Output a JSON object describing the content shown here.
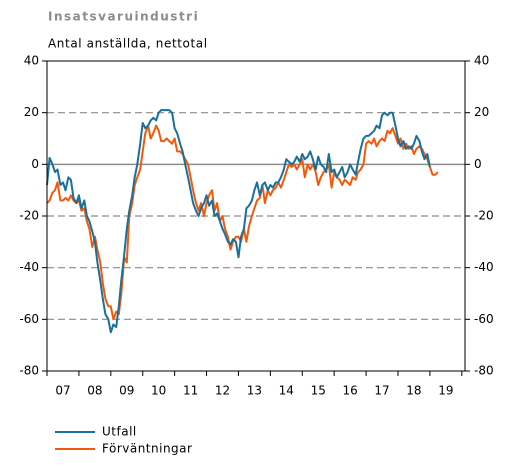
{
  "chart_data": {
    "type": "line",
    "title": "Insatsvaruindustri",
    "subtitle": "Antal anställda, nettotal",
    "x": [
      7,
      7.08,
      7.17,
      7.25,
      7.33,
      7.42,
      7.5,
      7.58,
      7.67,
      7.75,
      7.83,
      7.92,
      8,
      8.08,
      8.17,
      8.25,
      8.33,
      8.42,
      8.5,
      8.58,
      8.67,
      8.75,
      8.83,
      8.92,
      9,
      9.08,
      9.17,
      9.25,
      9.33,
      9.42,
      9.5,
      9.58,
      9.67,
      9.75,
      9.83,
      9.92,
      10,
      10.08,
      10.17,
      10.25,
      10.33,
      10.42,
      10.5,
      10.58,
      10.67,
      10.75,
      10.83,
      10.92,
      11,
      11.08,
      11.17,
      11.25,
      11.33,
      11.42,
      11.5,
      11.58,
      11.67,
      11.75,
      11.83,
      11.92,
      12,
      12.08,
      12.17,
      12.25,
      12.33,
      12.42,
      12.5,
      12.58,
      12.67,
      12.75,
      12.83,
      12.92,
      13,
      13.08,
      13.17,
      13.25,
      13.33,
      13.42,
      13.5,
      13.58,
      13.67,
      13.75,
      13.83,
      13.92,
      14,
      14.08,
      14.17,
      14.25,
      14.33,
      14.42,
      14.5,
      14.58,
      14.67,
      14.75,
      14.83,
      14.92,
      15,
      15.08,
      15.17,
      15.25,
      15.33,
      15.42,
      15.5,
      15.58,
      15.67,
      15.75,
      15.83,
      15.92,
      16,
      16.08,
      16.17,
      16.25,
      16.33,
      16.42,
      16.5,
      16.58,
      16.67,
      16.75,
      16.83,
      16.92,
      17,
      17.08,
      17.17,
      17.25,
      17.33,
      17.42,
      17.5,
      17.58,
      17.67,
      17.75,
      17.83,
      17.92,
      18,
      18.08,
      18.17,
      18.25,
      18.33,
      18.42,
      18.5,
      18.58,
      18.67,
      18.75,
      18.83,
      18.92,
      19,
      19.08,
      19.17,
      19.25
    ],
    "series": [
      {
        "name": "Utfall",
        "color": "#19709c",
        "values": [
          -8,
          2.5,
          0,
          -3,
          -2,
          -8,
          -7,
          -10,
          -5,
          -6,
          -13,
          -15,
          -12,
          -17,
          -14,
          -20,
          -22,
          -26,
          -30,
          -38,
          -45,
          -52,
          -58,
          -60,
          -65,
          -62,
          -63,
          -55,
          -45,
          -35,
          -25,
          -18,
          -12,
          -5,
          0,
          8,
          16,
          14,
          15,
          17,
          18,
          17,
          20,
          21,
          21,
          21,
          21,
          20,
          14,
          12,
          8,
          5,
          0,
          -5,
          -10,
          -15,
          -18,
          -20,
          -17,
          -15,
          -12,
          -16,
          -14,
          -20,
          -19,
          -22,
          -25,
          -27,
          -30,
          -31,
          -29,
          -30,
          -36,
          -28,
          -25,
          -17,
          -16,
          -14,
          -10,
          -7,
          -12,
          -8,
          -7,
          -10,
          -8,
          -9,
          -7,
          -7,
          -5,
          -2,
          2,
          1,
          0,
          1,
          3,
          1,
          4,
          2,
          3,
          5,
          2,
          -2,
          3,
          0,
          -1,
          -3,
          4,
          -3,
          -2,
          -5,
          -3,
          -1,
          -5,
          -3,
          0,
          -2,
          -4,
          1,
          6,
          10,
          11,
          11,
          12,
          13,
          15,
          14,
          19,
          20,
          19,
          20,
          20,
          15,
          10,
          7,
          9,
          6,
          7,
          6,
          8,
          11,
          9,
          5,
          2,
          4,
          -1,
          null,
          null,
          null
        ]
      },
      {
        "name": "Förväntningar",
        "color": "#f25a0a",
        "values": [
          -15,
          -14,
          -11,
          -10,
          -7,
          -14,
          -14,
          -13,
          -14,
          -12,
          -14,
          -15,
          -14,
          -18,
          -17,
          -22,
          -25,
          -32,
          -28,
          -33,
          -38,
          -46,
          -52,
          -55,
          -55,
          -60,
          -57,
          -58,
          -50,
          -36,
          -38,
          -20,
          -15,
          -8,
          -5,
          -2,
          5,
          12,
          15,
          10,
          12,
          15,
          13,
          9,
          9,
          10,
          9,
          8,
          10,
          5,
          5,
          4,
          2,
          0,
          -5,
          -10,
          -15,
          -18,
          -15,
          -20,
          -15,
          -12,
          -10,
          -18,
          -15,
          -22,
          -20,
          -25,
          -28,
          -33,
          -30,
          -28,
          -28,
          -30,
          -25,
          -30,
          -24,
          -20,
          -17,
          -14,
          -13,
          -8,
          -15,
          -10,
          -12,
          -10,
          -9,
          -7,
          -9,
          -6,
          -3,
          0,
          -1,
          0,
          -2,
          0,
          2,
          -5,
          0,
          -2,
          0,
          -3,
          -8,
          -5,
          -3,
          -2,
          0,
          -9,
          -3,
          -5,
          -6,
          -8,
          -6,
          -7,
          -8,
          -5,
          -6,
          -3,
          -2,
          0,
          8,
          9,
          8,
          10,
          7,
          9,
          10,
          9,
          13,
          12,
          14,
          11,
          8,
          10,
          6,
          8,
          6,
          7,
          4,
          6,
          7,
          6,
          4,
          2,
          -1,
          -4,
          -4,
          -3
        ]
      }
    ],
    "xlim": [
      7,
      20.1
    ],
    "xticks": [
      {
        "value": 7.5,
        "label": "07"
      },
      {
        "value": 8.5,
        "label": "08"
      },
      {
        "value": 9.5,
        "label": "09"
      },
      {
        "value": 10.5,
        "label": "10"
      },
      {
        "value": 11.5,
        "label": "11"
      },
      {
        "value": 12.5,
        "label": "12"
      },
      {
        "value": 13.5,
        "label": "13"
      },
      {
        "value": 14.5,
        "label": "14"
      },
      {
        "value": 15.5,
        "label": "15"
      },
      {
        "value": 16.5,
        "label": "16"
      },
      {
        "value": 17.5,
        "label": "17"
      },
      {
        "value": 18.5,
        "label": "18"
      },
      {
        "value": 19.5,
        "label": "19"
      }
    ],
    "ylim": [
      -80,
      40
    ],
    "yticks": [
      -80,
      -60,
      -40,
      -20,
      0,
      20,
      40
    ],
    "y2lim": [
      -80,
      40
    ],
    "y2ticks": [
      -80,
      -60,
      -40,
      -20,
      0,
      20,
      40
    ],
    "grid": true
  }
}
